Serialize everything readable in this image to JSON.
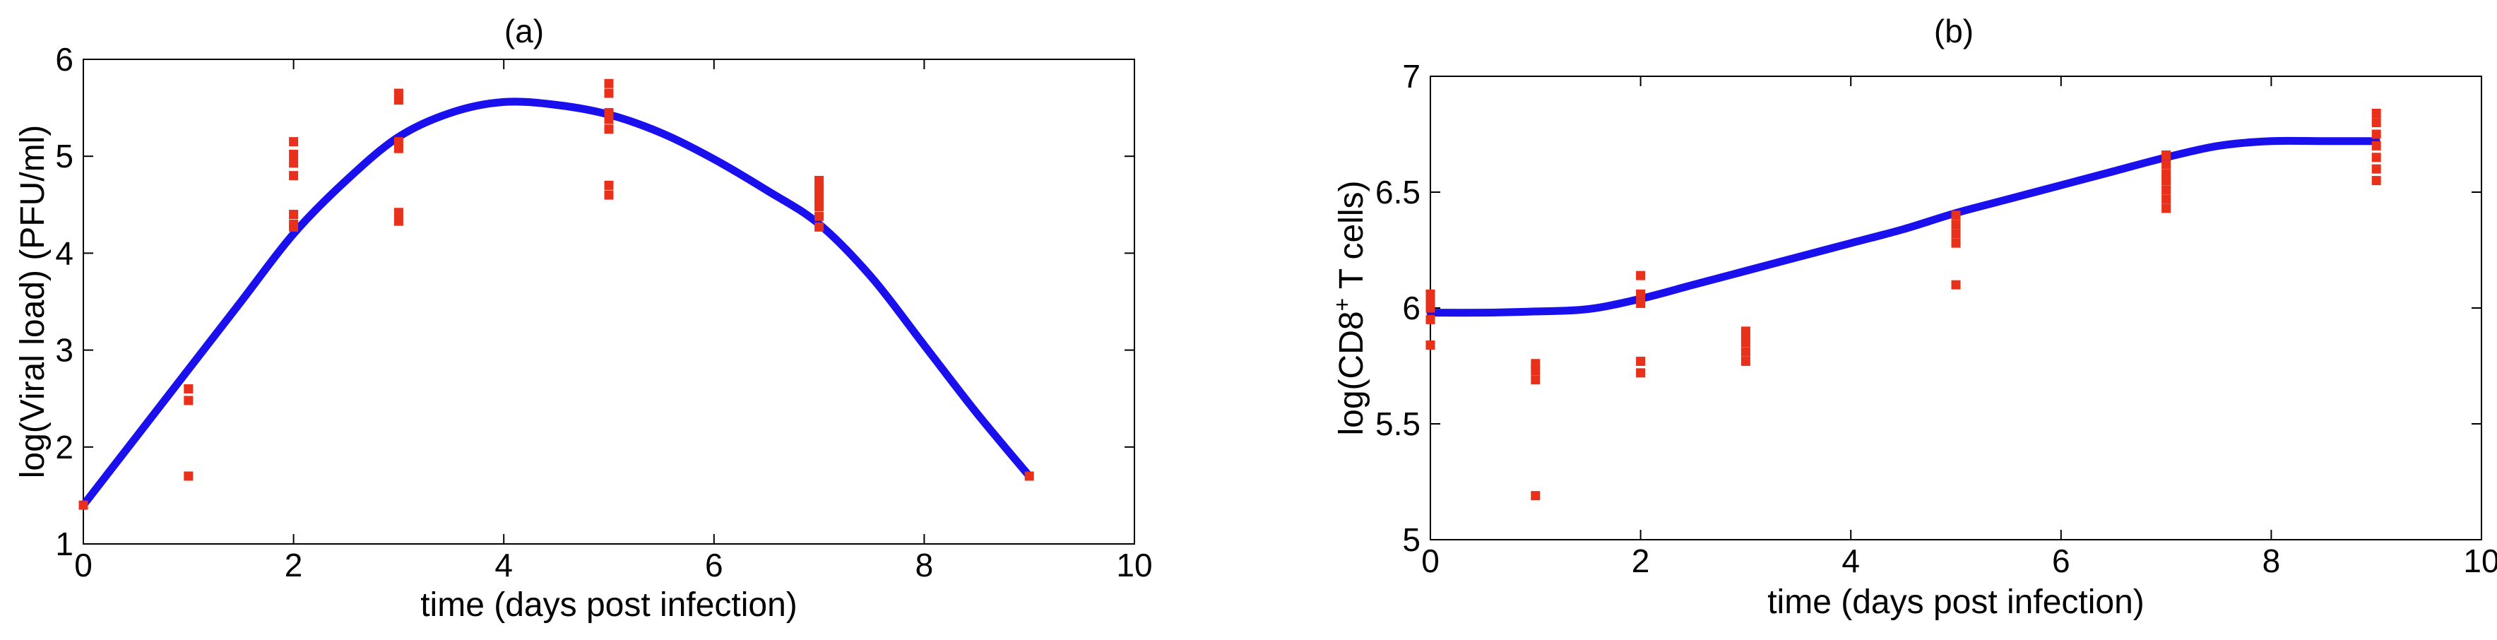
{
  "colors": {
    "fit_line": "#1a10ee",
    "data_points": "#e8301a",
    "axis": "#000000"
  },
  "chart_data": [
    {
      "type": "line",
      "panel_label": "(a)",
      "xlabel": "time (days post infection)",
      "ylabel": "log(Viral load) (PFU/ml)",
      "xlim": [
        0,
        10
      ],
      "ylim": [
        1,
        6
      ],
      "xticks": [
        "0",
        "2",
        "4",
        "6",
        "8",
        "10"
      ],
      "yticks": [
        "1",
        "2",
        "3",
        "4",
        "5",
        "6"
      ],
      "grid": false,
      "series": [
        {
          "kind": "line",
          "x": [
            0,
            0.5,
            1,
            1.5,
            2,
            2.5,
            3,
            3.5,
            4,
            4.5,
            5,
            5.5,
            6,
            6.5,
            7,
            7.5,
            8,
            8.5,
            9
          ],
          "y": [
            1.4,
            2.1,
            2.8,
            3.5,
            4.2,
            4.75,
            5.2,
            5.45,
            5.56,
            5.53,
            5.43,
            5.24,
            4.97,
            4.65,
            4.3,
            3.75,
            3.05,
            2.35,
            1.7
          ]
        },
        {
          "kind": "scatter",
          "x": [
            0,
            1,
            1,
            1,
            2,
            2,
            2,
            2,
            2,
            2,
            2,
            3,
            3,
            3,
            3,
            3,
            3,
            5,
            5,
            5,
            5,
            5,
            5,
            5,
            7,
            7,
            7,
            7,
            7,
            7,
            7,
            9
          ],
          "y": [
            1.4,
            1.7,
            2.48,
            2.6,
            4.3,
            4.4,
            4.8,
            4.93,
            5.02,
            5.15,
            4.27,
            4.33,
            4.42,
            5.08,
            5.15,
            5.58,
            5.65,
            4.6,
            4.7,
            5.28,
            5.38,
            5.45,
            5.65,
            5.75,
            4.27,
            4.38,
            4.48,
            4.55,
            4.62,
            4.68,
            4.75,
            1.7
          ]
        }
      ]
    },
    {
      "type": "line",
      "panel_label": "(b)",
      "xlabel": "time (days post infection)",
      "ylabel_prefix": "log(CD8",
      "ylabel_superscript": "+",
      "ylabel_suffix": " T cells)",
      "xlim": [
        0,
        10
      ],
      "ylim": [
        5,
        7
      ],
      "xticks": [
        "0",
        "2",
        "4",
        "6",
        "8",
        "10"
      ],
      "yticks": [
        "5",
        "5.5",
        "6",
        "6.5",
        "7"
      ],
      "grid": false,
      "series": [
        {
          "kind": "line",
          "x": [
            0,
            0.5,
            1,
            1.5,
            2,
            2.5,
            3,
            3.5,
            4,
            4.5,
            5,
            5.5,
            6,
            6.5,
            7,
            7.5,
            8,
            8.5,
            9
          ],
          "y": [
            5.98,
            5.98,
            5.985,
            5.995,
            6.04,
            6.1,
            6.16,
            6.22,
            6.28,
            6.34,
            6.41,
            6.47,
            6.53,
            6.59,
            6.65,
            6.7,
            6.72,
            6.72,
            6.72
          ]
        },
        {
          "kind": "scatter",
          "x": [
            0,
            0,
            0,
            0,
            0,
            1,
            1,
            1,
            1,
            2,
            2,
            2,
            2,
            2,
            3,
            3,
            3,
            3,
            3,
            5,
            5,
            5,
            5,
            5,
            7,
            7,
            7,
            7,
            7,
            7,
            7,
            9,
            9,
            9,
            9,
            9,
            9,
            9
          ],
          "y": [
            5.84,
            5.95,
            6.0,
            6.03,
            6.06,
            5.19,
            5.69,
            5.73,
            5.76,
            5.72,
            5.77,
            6.02,
            6.06,
            6.14,
            5.77,
            5.81,
            5.85,
            5.88,
            5.9,
            6.1,
            6.28,
            6.32,
            6.36,
            6.4,
            6.43,
            6.47,
            6.51,
            6.55,
            6.58,
            6.62,
            6.66,
            6.55,
            6.6,
            6.65,
            6.7,
            6.75,
            6.8,
            6.84
          ]
        }
      ]
    }
  ]
}
